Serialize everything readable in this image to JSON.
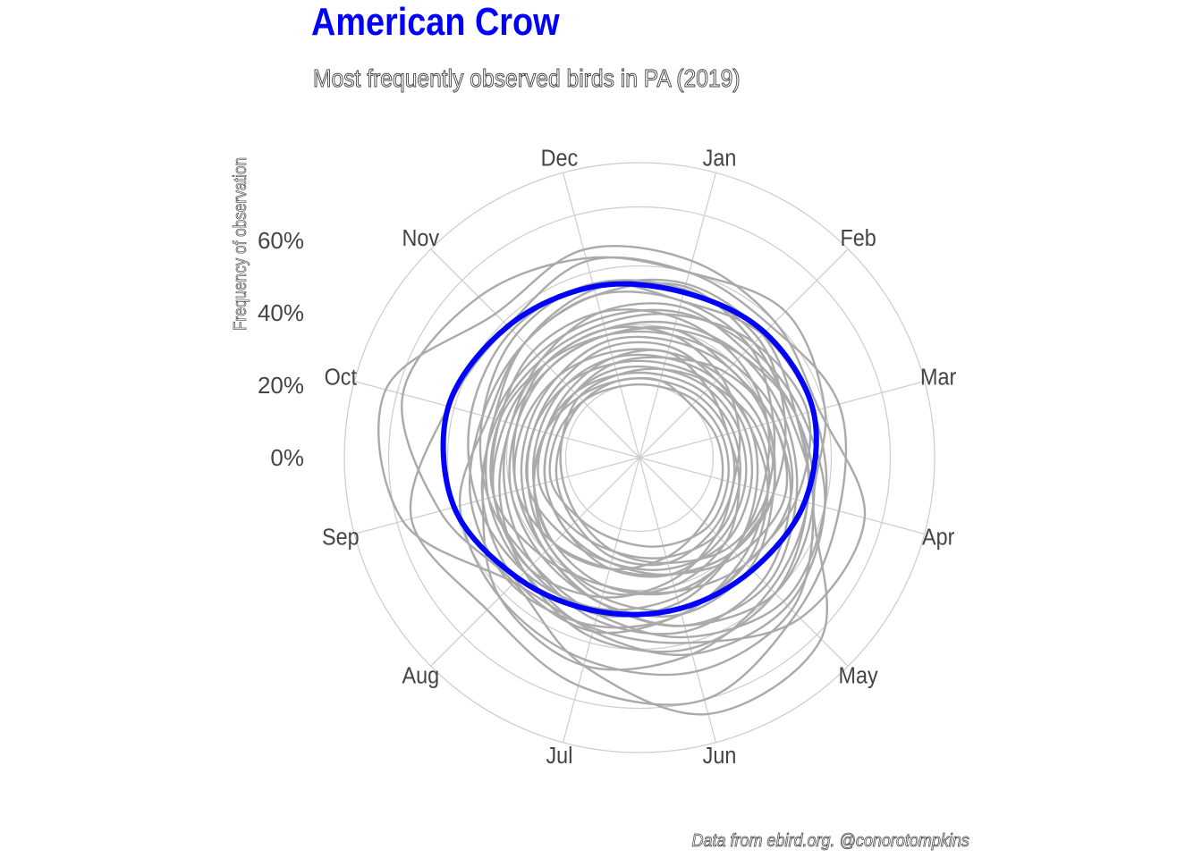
{
  "chart_data": {
    "type": "radial-line",
    "title": "American Crow",
    "subtitle": "Most frequently observed birds in PA (2019)",
    "caption": "Data from ebird.org. @conorotompkins",
    "ylabel": "Frequency of observation",
    "months": [
      "Jan",
      "Feb",
      "Mar",
      "Apr",
      "May",
      "Jun",
      "Jul",
      "Aug",
      "Sep",
      "Oct",
      "Nov",
      "Dec"
    ],
    "y_ticks": [
      "0%",
      "20%",
      "40%",
      "60%"
    ],
    "y_tick_values": [
      0,
      20,
      40,
      60
    ],
    "ylim": [
      -25,
      75
    ],
    "highlight": {
      "name": "American Crow",
      "color": "#0000ff",
      "values": [
        33,
        35,
        36,
        33,
        29,
        28,
        29,
        33,
        40,
        42,
        38,
        35
      ]
    },
    "others_color": "#aaaaaa",
    "series": [
      {
        "values": [
          40,
          45,
          40,
          36,
          62,
          65,
          48,
          35,
          45,
          58,
          52,
          45
        ]
      },
      {
        "values": [
          44,
          40,
          38,
          54,
          52,
          40,
          35,
          35,
          58,
          64,
          44,
          48
        ]
      },
      {
        "values": [
          40,
          38,
          45,
          45,
          50,
          60,
          55,
          48,
          55,
          42,
          38,
          44
        ]
      },
      {
        "values": [
          35,
          30,
          28,
          36,
          48,
          50,
          46,
          42,
          38,
          28,
          30,
          32
        ]
      },
      {
        "values": [
          36,
          34,
          30,
          34,
          38,
          44,
          48,
          42,
          30,
          26,
          30,
          34
        ]
      },
      {
        "values": [
          30,
          34,
          36,
          40,
          44,
          38,
          30,
          26,
          28,
          30,
          34,
          36
        ]
      },
      {
        "values": [
          28,
          26,
          30,
          34,
          40,
          42,
          38,
          30,
          24,
          20,
          22,
          26
        ]
      },
      {
        "values": [
          25,
          30,
          34,
          30,
          26,
          30,
          36,
          34,
          30,
          25,
          22,
          22
        ]
      },
      {
        "values": [
          22,
          24,
          26,
          30,
          36,
          34,
          26,
          20,
          18,
          18,
          20,
          20
        ]
      },
      {
        "values": [
          20,
          18,
          22,
          28,
          34,
          36,
          32,
          26,
          22,
          20,
          18,
          18
        ]
      },
      {
        "values": [
          18,
          20,
          24,
          28,
          26,
          22,
          20,
          22,
          26,
          24,
          20,
          18
        ]
      },
      {
        "values": [
          16,
          18,
          20,
          22,
          28,
          30,
          26,
          20,
          16,
          14,
          14,
          16
        ]
      },
      {
        "values": [
          14,
          12,
          14,
          20,
          26,
          28,
          24,
          18,
          14,
          12,
          12,
          14
        ]
      },
      {
        "values": [
          12,
          14,
          18,
          22,
          20,
          16,
          14,
          16,
          18,
          16,
          14,
          12
        ]
      },
      {
        "values": [
          10,
          12,
          14,
          16,
          20,
          22,
          20,
          16,
          12,
          10,
          10,
          10
        ]
      },
      {
        "values": [
          8,
          10,
          12,
          14,
          16,
          14,
          12,
          12,
          14,
          12,
          10,
          8
        ]
      },
      {
        "values": [
          6,
          8,
          10,
          12,
          14,
          16,
          14,
          10,
          8,
          6,
          6,
          6
        ]
      },
      {
        "values": [
          4,
          6,
          8,
          10,
          12,
          10,
          8,
          8,
          10,
          8,
          6,
          4
        ]
      },
      {
        "values": [
          2,
          4,
          6,
          8,
          10,
          12,
          10,
          6,
          4,
          2,
          2,
          2
        ]
      },
      {
        "values": [
          0,
          2,
          4,
          6,
          8,
          6,
          4,
          4,
          6,
          4,
          2,
          0
        ]
      },
      {
        "values": [
          24,
          22,
          20,
          18,
          20,
          26,
          30,
          28,
          26,
          24,
          26,
          26
        ]
      },
      {
        "values": [
          30,
          28,
          22,
          20,
          24,
          30,
          34,
          36,
          34,
          30,
          30,
          32
        ]
      },
      {
        "values": [
          6,
          10,
          16,
          20,
          18,
          12,
          8,
          4,
          2,
          2,
          4,
          4
        ]
      },
      {
        "values": [
          12,
          8,
          6,
          10,
          16,
          20,
          22,
          18,
          12,
          8,
          8,
          10
        ]
      },
      {
        "values": [
          18,
          14,
          10,
          8,
          12,
          18,
          24,
          28,
          26,
          22,
          20,
          20
        ]
      },
      {
        "values": [
          10,
          16,
          22,
          26,
          22,
          16,
          12,
          10,
          8,
          6,
          6,
          8
        ]
      },
      {
        "values": [
          34,
          32,
          26,
          22,
          20,
          24,
          28,
          30,
          32,
          34,
          36,
          36
        ]
      },
      {
        "values": [
          20,
          24,
          30,
          36,
          40,
          34,
          26,
          22,
          20,
          18,
          18,
          18
        ]
      },
      {
        "values": [
          2,
          0,
          2,
          4,
          6,
          10,
          14,
          16,
          12,
          8,
          4,
          2
        ]
      },
      {
        "values": [
          26,
          28,
          32,
          40,
          46,
          44,
          36,
          30,
          28,
          26,
          24,
          24
        ]
      }
    ]
  }
}
